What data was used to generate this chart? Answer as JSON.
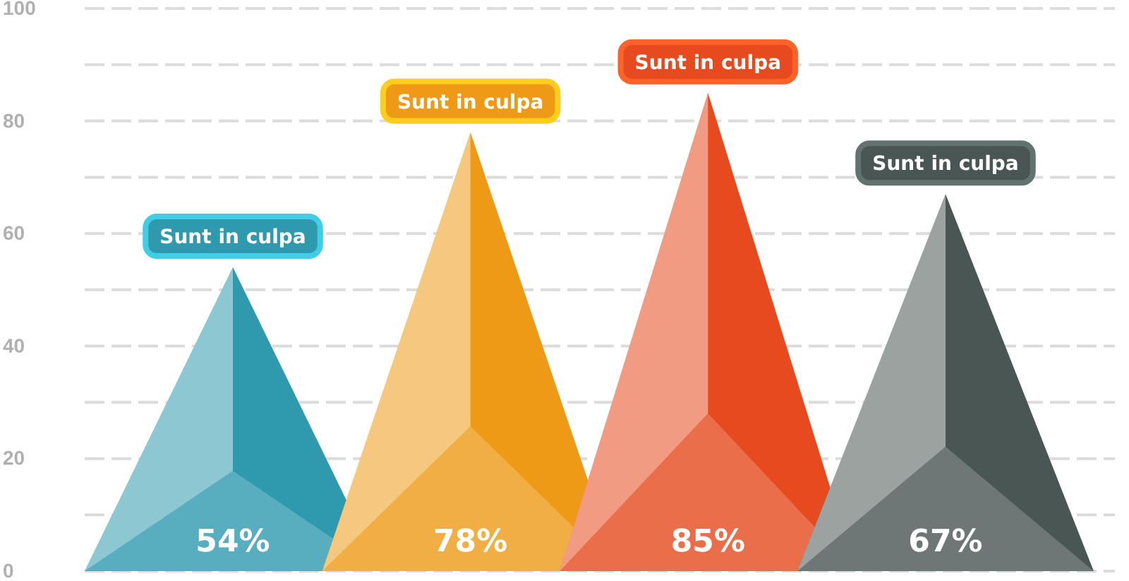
{
  "chart_data": {
    "type": "bar",
    "categories": [
      null,
      null,
      null,
      null
    ],
    "values": [
      54,
      78,
      85,
      67
    ],
    "colors": [
      "#2f9aae",
      "#ee9a16",
      "#e64a1e",
      "#4a5653"
    ],
    "value_labels": [
      "54%",
      "78%",
      "85%",
      "67%"
    ],
    "annotations": [
      "Sunt in culpa",
      "Sunt in culpa",
      "Sunt in culpa",
      "Sunt in culpa"
    ],
    "ylim": [
      0,
      100
    ],
    "yticks": [
      0,
      {
        "value": 10,
        "label": null
      },
      20,
      {
        "value": 30,
        "label": null
      },
      40,
      {
        "value": 50,
        "label": null
      },
      60,
      {
        "value": 70,
        "label": null
      },
      80,
      {
        "value": 90,
        "label": null
      },
      100
    ],
    "grid": "y"
  }
}
